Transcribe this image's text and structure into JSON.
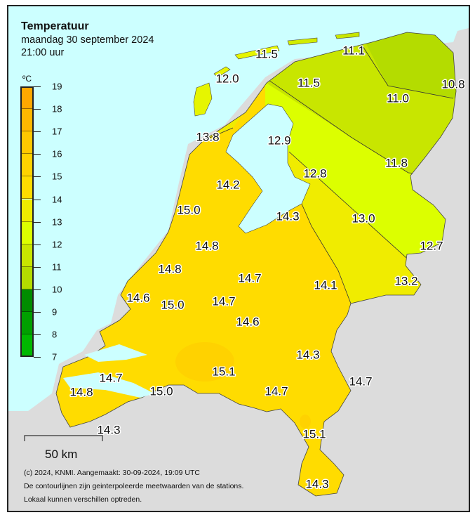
{
  "header": {
    "title": "Temperatuur",
    "date": "maandag 30 september 2024",
    "time": "21:00 uur"
  },
  "legend": {
    "unit": "ºC",
    "ticks": [
      "19",
      "18",
      "17",
      "16",
      "15",
      "14",
      "13",
      "12",
      "11",
      "10",
      "9",
      "8",
      "7"
    ],
    "band_colors": [
      "#ffa800",
      "#ffb800",
      "#ffc800",
      "#ffd200",
      "#ffdc00",
      "#f0ec00",
      "#dcff00",
      "#c8e600",
      "#b4dc00",
      "#008c00",
      "#00a000",
      "#00b800"
    ]
  },
  "map": {
    "colors": {
      "sea": "#ccffff",
      "foreign_land": "#dcdcdc",
      "band_10_11": "#b4dc00",
      "band_11_12": "#c8e600",
      "band_12_13": "#dcff00",
      "band_13_14": "#f0ec00",
      "band_14_15": "#ffdc00",
      "band_15_16": "#ffd200"
    },
    "stations": [
      "11.5",
      "11.1",
      "12.0",
      "11.5",
      "10.8",
      "11.0",
      "13.8",
      "12.9",
      "11.8",
      "12.8",
      "14.2",
      "15.0",
      "14.3",
      "13.0",
      "12.7",
      "14.8",
      "14.8",
      "14.7",
      "14.1",
      "13.2",
      "14.6",
      "15.0",
      "14.7",
      "14.6",
      "14.3",
      "15.1",
      "14.7",
      "14.7",
      "14.8",
      "15.0",
      "14.7",
      "15.1",
      "14.3",
      "14.3"
    ]
  },
  "scale_bar": {
    "label": "50 km"
  },
  "footer": {
    "credit": "(c) 2024, KNMI. Aangemaakt: 30-09-2024, 19:09 UTC",
    "note1": "De contourlijnen zijn geinterpoleerde meetwaarden van de stations.",
    "note2": "Lokaal kunnen verschillen optreden."
  }
}
